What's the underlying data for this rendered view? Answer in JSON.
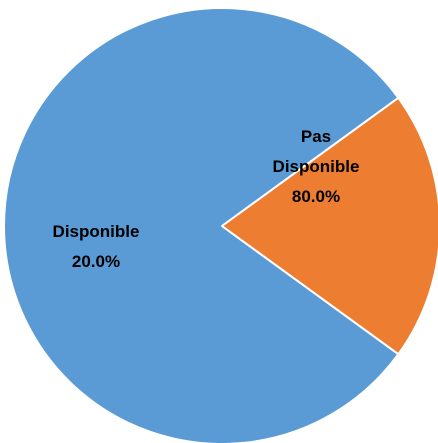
{
  "chart_data": {
    "type": "pie",
    "slices": [
      {
        "label_lines": [
          "Pas",
          "Disponible"
        ],
        "value_label": "80.0%",
        "value": 80.0,
        "color": "#5B9BD5"
      },
      {
        "label_lines": [
          "Disponible"
        ],
        "value_label": "20.0%",
        "value": 20.0,
        "color": "#ED7D31"
      }
    ],
    "start_angle_deg": 126,
    "direction": "clockwise",
    "border_color": "#FFFFFF"
  }
}
